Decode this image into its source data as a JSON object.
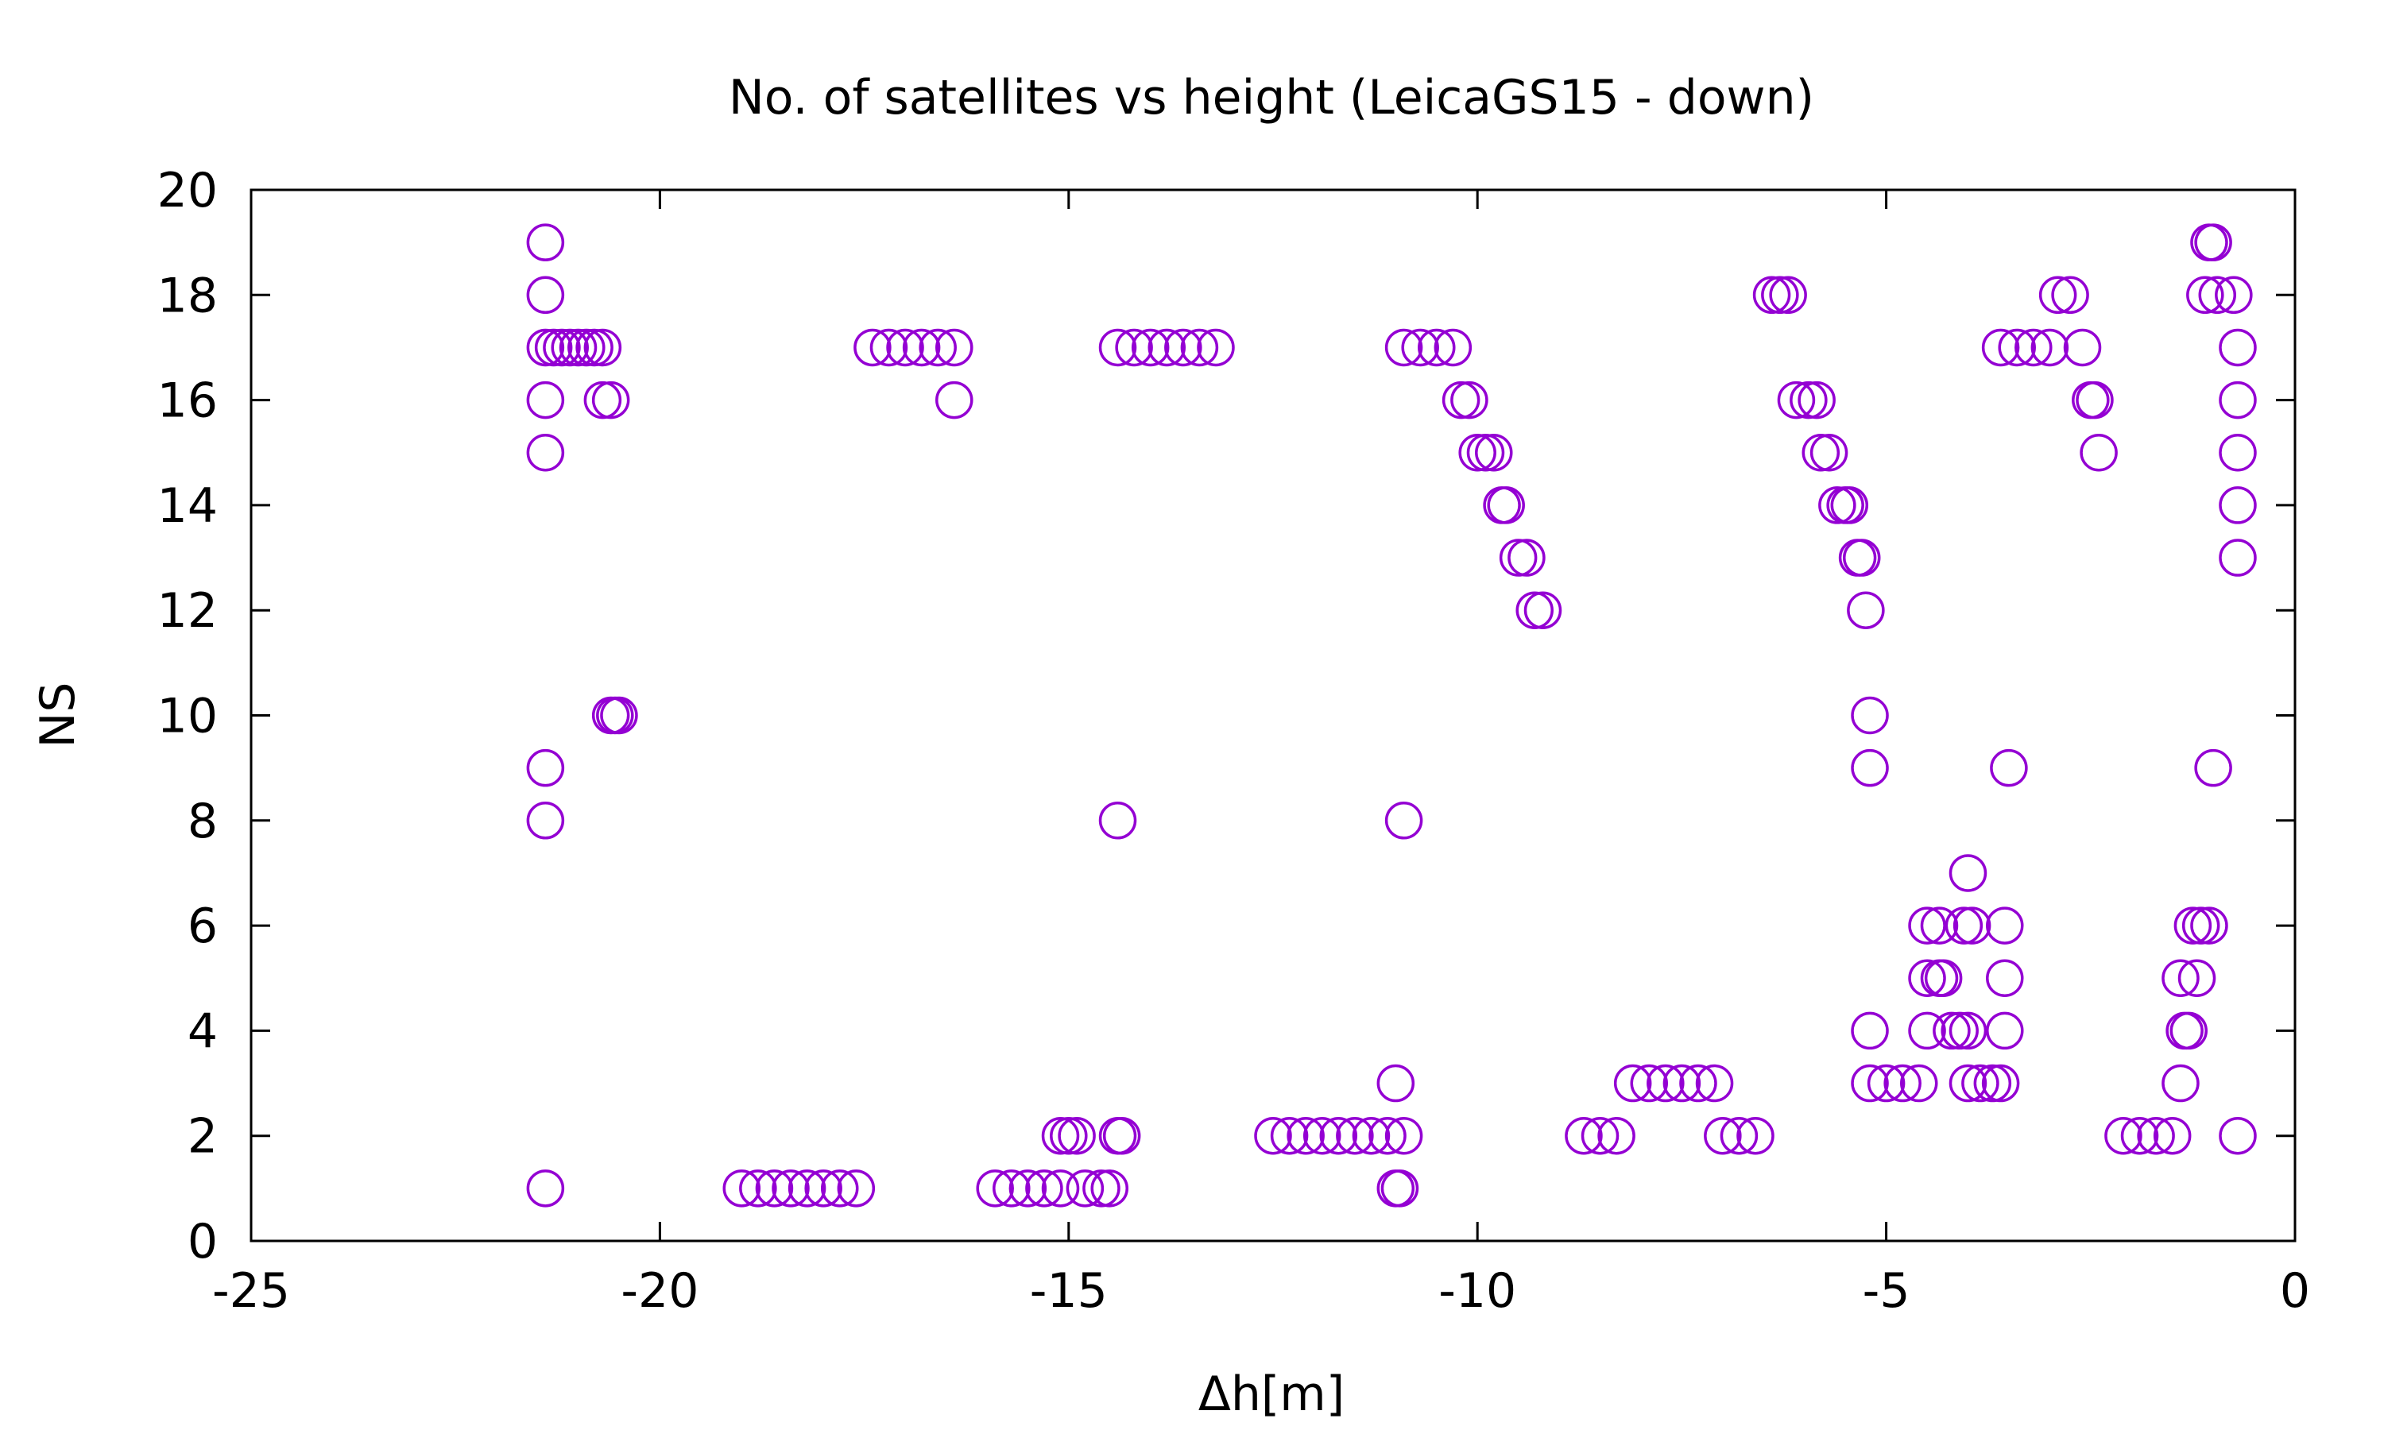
{
  "chart_data": {
    "type": "scatter",
    "title": "No. of satellites vs height (LeicaGS15 - down)",
    "xlabel": "Δh[m]",
    "ylabel": "NS",
    "xlim": [
      -25,
      0
    ],
    "ylim": [
      0,
      20
    ],
    "xticks": [
      -25,
      -20,
      -15,
      -10,
      -5,
      0
    ],
    "yticks": [
      0,
      2,
      4,
      6,
      8,
      10,
      12,
      14,
      16,
      18,
      20
    ],
    "grid": false,
    "legend": "none",
    "marker": "open-circle",
    "color": "#9400d3",
    "points": [
      {
        "x": -21.4,
        "y": 19
      },
      {
        "x": -21.4,
        "y": 18
      },
      {
        "x": -21.4,
        "y": 16
      },
      {
        "x": -21.4,
        "y": 15
      },
      {
        "x": -21.4,
        "y": 9
      },
      {
        "x": -21.4,
        "y": 8
      },
      {
        "x": -21.4,
        "y": 1
      },
      {
        "x": -21.4,
        "y": 17
      },
      {
        "x": -21.3,
        "y": 17
      },
      {
        "x": -21.2,
        "y": 17
      },
      {
        "x": -21.1,
        "y": 17
      },
      {
        "x": -21.0,
        "y": 17
      },
      {
        "x": -20.9,
        "y": 17
      },
      {
        "x": -20.8,
        "y": 17
      },
      {
        "x": -20.7,
        "y": 17
      },
      {
        "x": -20.6,
        "y": 16
      },
      {
        "x": -20.7,
        "y": 16
      },
      {
        "x": -20.5,
        "y": 10
      },
      {
        "x": -20.6,
        "y": 10
      },
      {
        "x": -20.55,
        "y": 10
      },
      {
        "x": -19.0,
        "y": 1
      },
      {
        "x": -18.8,
        "y": 1
      },
      {
        "x": -18.6,
        "y": 1
      },
      {
        "x": -18.4,
        "y": 1
      },
      {
        "x": -18.2,
        "y": 1
      },
      {
        "x": -18.0,
        "y": 1
      },
      {
        "x": -17.8,
        "y": 1
      },
      {
        "x": -17.6,
        "y": 1
      },
      {
        "x": -17.4,
        "y": 17
      },
      {
        "x": -17.2,
        "y": 17
      },
      {
        "x": -17.0,
        "y": 17
      },
      {
        "x": -16.8,
        "y": 17
      },
      {
        "x": -16.6,
        "y": 17
      },
      {
        "x": -16.4,
        "y": 17
      },
      {
        "x": -16.4,
        "y": 16
      },
      {
        "x": -15.9,
        "y": 1
      },
      {
        "x": -15.7,
        "y": 1
      },
      {
        "x": -15.5,
        "y": 1
      },
      {
        "x": -15.3,
        "y": 1
      },
      {
        "x": -15.1,
        "y": 1
      },
      {
        "x": -15.0,
        "y": 2
      },
      {
        "x": -14.9,
        "y": 2
      },
      {
        "x": -15.1,
        "y": 2
      },
      {
        "x": -14.8,
        "y": 1
      },
      {
        "x": -14.6,
        "y": 1
      },
      {
        "x": -14.5,
        "y": 1
      },
      {
        "x": -14.4,
        "y": 2
      },
      {
        "x": -14.35,
        "y": 2
      },
      {
        "x": -14.4,
        "y": 8
      },
      {
        "x": -14.4,
        "y": 17
      },
      {
        "x": -14.2,
        "y": 17
      },
      {
        "x": -14.0,
        "y": 17
      },
      {
        "x": -13.8,
        "y": 17
      },
      {
        "x": -13.6,
        "y": 17
      },
      {
        "x": -13.4,
        "y": 17
      },
      {
        "x": -13.2,
        "y": 17
      },
      {
        "x": -12.5,
        "y": 2
      },
      {
        "x": -12.3,
        "y": 2
      },
      {
        "x": -12.1,
        "y": 2
      },
      {
        "x": -11.9,
        "y": 2
      },
      {
        "x": -11.7,
        "y": 2
      },
      {
        "x": -11.5,
        "y": 2
      },
      {
        "x": -11.3,
        "y": 2
      },
      {
        "x": -11.1,
        "y": 2
      },
      {
        "x": -10.9,
        "y": 2
      },
      {
        "x": -11.0,
        "y": 3
      },
      {
        "x": -10.9,
        "y": 8
      },
      {
        "x": -11.0,
        "y": 1
      },
      {
        "x": -10.95,
        "y": 1
      },
      {
        "x": -10.9,
        "y": 17
      },
      {
        "x": -10.7,
        "y": 17
      },
      {
        "x": -10.5,
        "y": 17
      },
      {
        "x": -10.3,
        "y": 17
      },
      {
        "x": -10.2,
        "y": 16
      },
      {
        "x": -10.1,
        "y": 16
      },
      {
        "x": -10.0,
        "y": 15
      },
      {
        "x": -9.9,
        "y": 15
      },
      {
        "x": -9.8,
        "y": 15
      },
      {
        "x": -9.7,
        "y": 14
      },
      {
        "x": -9.65,
        "y": 14
      },
      {
        "x": -9.5,
        "y": 13
      },
      {
        "x": -9.4,
        "y": 13
      },
      {
        "x": -9.3,
        "y": 12
      },
      {
        "x": -9.2,
        "y": 12
      },
      {
        "x": -8.7,
        "y": 2
      },
      {
        "x": -8.5,
        "y": 2
      },
      {
        "x": -8.3,
        "y": 2
      },
      {
        "x": -8.1,
        "y": 3
      },
      {
        "x": -7.9,
        "y": 3
      },
      {
        "x": -7.7,
        "y": 3
      },
      {
        "x": -7.5,
        "y": 3
      },
      {
        "x": -7.3,
        "y": 3
      },
      {
        "x": -7.1,
        "y": 3
      },
      {
        "x": -7.0,
        "y": 2
      },
      {
        "x": -6.8,
        "y": 2
      },
      {
        "x": -6.6,
        "y": 2
      },
      {
        "x": -6.4,
        "y": 18
      },
      {
        "x": -6.3,
        "y": 18
      },
      {
        "x": -6.2,
        "y": 18
      },
      {
        "x": -6.1,
        "y": 16
      },
      {
        "x": -5.95,
        "y": 16
      },
      {
        "x": -5.85,
        "y": 16
      },
      {
        "x": -5.8,
        "y": 15
      },
      {
        "x": -5.7,
        "y": 15
      },
      {
        "x": -5.6,
        "y": 14
      },
      {
        "x": -5.5,
        "y": 14
      },
      {
        "x": -5.45,
        "y": 14
      },
      {
        "x": -5.35,
        "y": 13
      },
      {
        "x": -5.3,
        "y": 13
      },
      {
        "x": -5.25,
        "y": 12
      },
      {
        "x": -5.2,
        "y": 10
      },
      {
        "x": -5.2,
        "y": 9
      },
      {
        "x": -5.2,
        "y": 4
      },
      {
        "x": -5.2,
        "y": 3
      },
      {
        "x": -5.0,
        "y": 3
      },
      {
        "x": -4.8,
        "y": 3
      },
      {
        "x": -4.6,
        "y": 3
      },
      {
        "x": -4.5,
        "y": 6
      },
      {
        "x": -4.35,
        "y": 6
      },
      {
        "x": -4.5,
        "y": 5
      },
      {
        "x": -4.35,
        "y": 5
      },
      {
        "x": -4.3,
        "y": 5
      },
      {
        "x": -4.5,
        "y": 4
      },
      {
        "x": -4.2,
        "y": 4
      },
      {
        "x": -4.1,
        "y": 4
      },
      {
        "x": -4.0,
        "y": 4
      },
      {
        "x": -4.0,
        "y": 7
      },
      {
        "x": -4.05,
        "y": 6
      },
      {
        "x": -3.95,
        "y": 6
      },
      {
        "x": -4.0,
        "y": 3
      },
      {
        "x": -3.85,
        "y": 3
      },
      {
        "x": -3.7,
        "y": 3
      },
      {
        "x": -3.6,
        "y": 3
      },
      {
        "x": -3.5,
        "y": 9
      },
      {
        "x": -3.55,
        "y": 6
      },
      {
        "x": -3.55,
        "y": 5
      },
      {
        "x": -3.55,
        "y": 4
      },
      {
        "x": -3.6,
        "y": 17
      },
      {
        "x": -3.4,
        "y": 17
      },
      {
        "x": -3.2,
        "y": 17
      },
      {
        "x": -3.0,
        "y": 17
      },
      {
        "x": -2.6,
        "y": 17
      },
      {
        "x": -2.9,
        "y": 18
      },
      {
        "x": -2.75,
        "y": 18
      },
      {
        "x": -2.5,
        "y": 16
      },
      {
        "x": -2.45,
        "y": 16
      },
      {
        "x": -2.4,
        "y": 15
      },
      {
        "x": -2.1,
        "y": 2
      },
      {
        "x": -1.9,
        "y": 2
      },
      {
        "x": -1.7,
        "y": 2
      },
      {
        "x": -1.5,
        "y": 2
      },
      {
        "x": -1.4,
        "y": 3
      },
      {
        "x": -1.4,
        "y": 5
      },
      {
        "x": -1.2,
        "y": 5
      },
      {
        "x": -1.35,
        "y": 4
      },
      {
        "x": -1.3,
        "y": 4
      },
      {
        "x": -1.25,
        "y": 6
      },
      {
        "x": -1.15,
        "y": 6
      },
      {
        "x": -1.05,
        "y": 6
      },
      {
        "x": -1.0,
        "y": 19
      },
      {
        "x": -1.05,
        "y": 19
      },
      {
        "x": -1.0,
        "y": 9
      },
      {
        "x": -1.1,
        "y": 18
      },
      {
        "x": -0.95,
        "y": 18
      },
      {
        "x": -0.75,
        "y": 18
      },
      {
        "x": -0.7,
        "y": 17
      },
      {
        "x": -0.7,
        "y": 16
      },
      {
        "x": -0.7,
        "y": 15
      },
      {
        "x": -0.7,
        "y": 14
      },
      {
        "x": -0.7,
        "y": 13
      },
      {
        "x": -0.7,
        "y": 2
      }
    ]
  }
}
